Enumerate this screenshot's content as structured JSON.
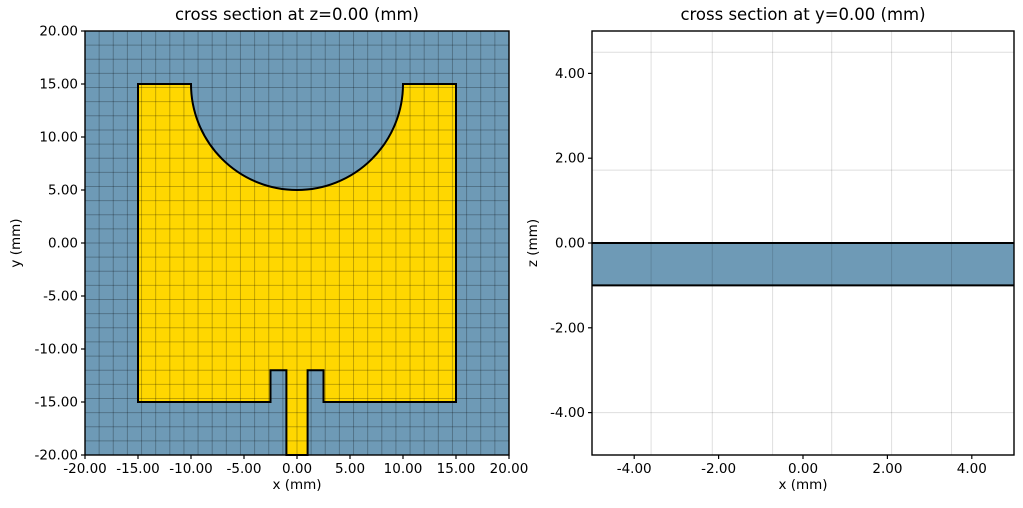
{
  "colors": {
    "figure_bg": "#ffffff",
    "substrate": "#6e9ab6",
    "metal": "#ffd700",
    "air": "#ffffff",
    "outline": "#000000",
    "mesh_dark": "rgba(0,0,0,0.25)",
    "mesh_light": "rgba(0,0,0,0.13)"
  },
  "chart_data": [
    {
      "id": "xy",
      "type": "cross-section",
      "title": "cross section at z=0.00 (mm)",
      "xlabel": "x (mm)",
      "ylabel": "y (mm)",
      "xlim": [
        -20,
        20
      ],
      "ylim": [
        -20,
        20
      ],
      "xticks": [
        -20,
        -15,
        -10,
        -5,
        0,
        5,
        10,
        15,
        20
      ],
      "yticks": [
        20,
        15,
        10,
        5,
        0,
        -5,
        -10,
        -15,
        -20
      ],
      "tick_decimals": 2,
      "grid": true,
      "background_color_key": "substrate",
      "mesh": {
        "color_key": "mesh_dark",
        "x_step": 1.3333,
        "y_step": 1.3333
      },
      "shapes": [
        {
          "name": "patch-metal",
          "color_key": "metal",
          "outline": [
            [
              "M",
              -15,
              -15
            ],
            [
              "L",
              -2.5,
              -15
            ],
            [
              "L",
              -2.5,
              -12
            ],
            [
              "L",
              -1,
              -12
            ],
            [
              "L",
              -1,
              -20
            ],
            [
              "L",
              1,
              -20
            ],
            [
              "L",
              1,
              -12
            ],
            [
              "L",
              2.5,
              -12
            ],
            [
              "L",
              2.5,
              -15
            ],
            [
              "L",
              15,
              -15
            ],
            [
              "L",
              15,
              15
            ],
            [
              "L",
              10,
              15
            ],
            [
              "A",
              10,
              -10,
              15
            ],
            [
              "L",
              -15,
              15
            ],
            [
              "Z"
            ]
          ],
          "circle_cutout": {
            "center": [
              0,
              15
            ],
            "radius": 10
          }
        }
      ]
    },
    {
      "id": "xz",
      "type": "cross-section",
      "title": "cross section at y=0.00 (mm)",
      "xlabel": "x (mm)",
      "ylabel": "z (mm)",
      "xlim": [
        -5,
        5
      ],
      "ylim": [
        -5,
        5
      ],
      "xticks": [
        -4,
        -2,
        0,
        2,
        4
      ],
      "yticks": [
        4,
        2,
        0,
        -2,
        -4
      ],
      "tick_decimals": 2,
      "grid": true,
      "background_color_key": "air",
      "mesh": {
        "color_key": "mesh_light",
        "x_lines": [
          -3.6,
          -2.15,
          -0.72,
          0.68,
          2.1,
          3.52
        ],
        "y_lines": [
          4.5,
          1.72,
          -4.0
        ]
      },
      "shapes": [
        {
          "name": "substrate-slab",
          "color_key": "substrate",
          "rect": [
            -5,
            -1,
            5,
            0
          ]
        }
      ]
    }
  ]
}
